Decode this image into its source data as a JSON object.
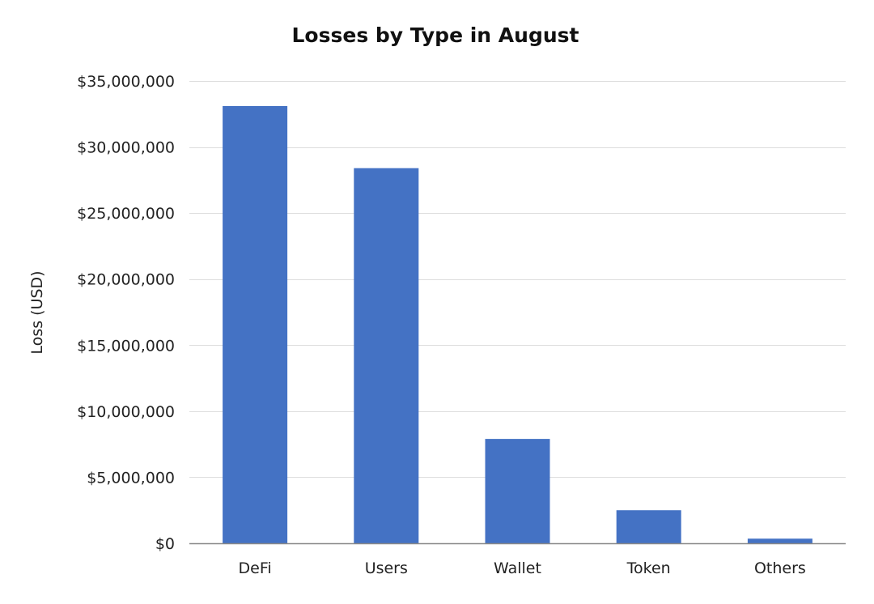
{
  "chart_data": {
    "type": "bar",
    "title": "Losses by Type in August",
    "xlabel": "",
    "ylabel": "Loss (USD)",
    "categories": [
      "DeFi",
      "Users",
      "Wallet",
      "Token",
      "Others"
    ],
    "values": [
      33100000,
      28400000,
      7900000,
      2500000,
      350000
    ],
    "ylim": [
      0,
      35000000
    ],
    "yticks": [
      0,
      5000000,
      10000000,
      15000000,
      20000000,
      25000000,
      30000000,
      35000000
    ],
    "ytick_labels": [
      "$0",
      "$5,000,000",
      "$10,000,000",
      "$15,000,000",
      "$20,000,000",
      "$25,000,000",
      "$30,000,000",
      "$35,000,000"
    ],
    "grid": true,
    "bar_color": "#4472c4"
  }
}
